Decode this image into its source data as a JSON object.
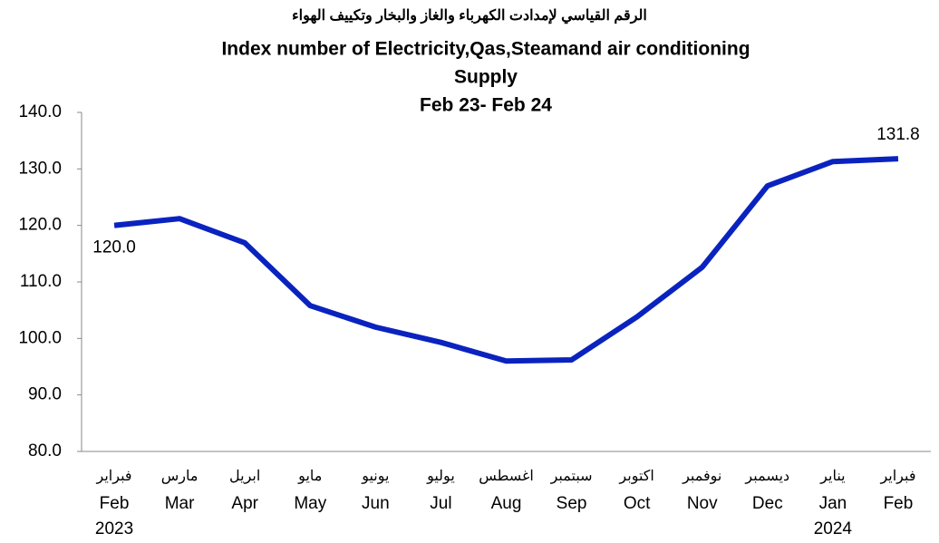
{
  "chart_data": {
    "type": "line",
    "title_ar": "الرقم القياسي لإمدادت الكهرباء والغاز والبخار وتكييف الهواء",
    "title_lines": [
      "Index number of Electricity,Qas,Steamand air conditioning",
      "Supply",
      "Feb 23- Feb 24"
    ],
    "categories": [
      "Feb",
      "Mar",
      "Apr",
      "May",
      "Jun",
      "Jul",
      "Aug",
      "Sep",
      "Oct",
      "Nov",
      "Dec",
      "Jan",
      "Feb"
    ],
    "categories_ar": [
      "فبراير",
      "مارس",
      "ابريل",
      "مايو",
      "يونيو",
      "يوليو",
      "اغسطس",
      "سبتمبر",
      "اكتوبر",
      "نوفمبر",
      "ديسمبر",
      "يناير",
      "فبراير"
    ],
    "category_years": [
      "2023",
      null,
      null,
      null,
      null,
      null,
      null,
      null,
      null,
      null,
      null,
      "2024",
      null
    ],
    "series": [
      {
        "name": "Index",
        "color": "#0a23bf",
        "values": [
          120.0,
          121.2,
          116.9,
          105.8,
          102.0,
          99.3,
          96.0,
          96.2,
          103.8,
          112.6,
          127.0,
          131.3,
          131.8
        ],
        "value_labels": [
          "120.0",
          null,
          null,
          null,
          null,
          null,
          null,
          null,
          null,
          null,
          null,
          null,
          "131.8"
        ]
      }
    ],
    "ylim": [
      80,
      140
    ],
    "yticks": [
      {
        "value": 80,
        "label": "80.0"
      },
      {
        "value": 90,
        "label": "90.0"
      },
      {
        "value": 100,
        "label": "100.0"
      },
      {
        "value": 110,
        "label": "110.0"
      },
      {
        "value": 120,
        "label": "120.0"
      },
      {
        "value": 130,
        "label": "130.0"
      },
      {
        "value": 140,
        "label": "140.0"
      }
    ],
    "grid": false
  }
}
